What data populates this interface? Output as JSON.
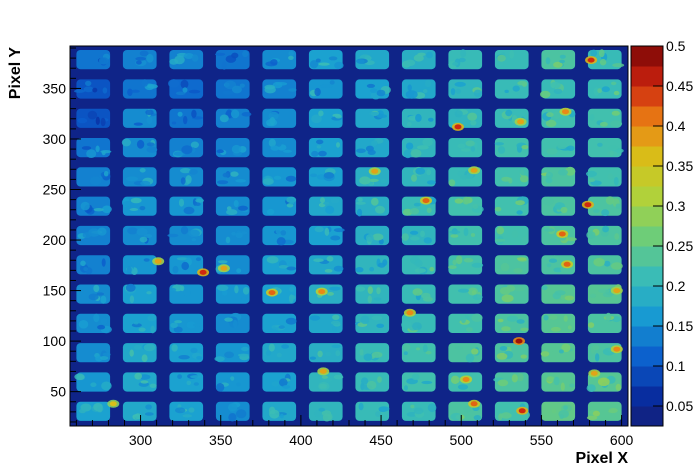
{
  "chart_data": {
    "type": "heatmap",
    "title": "",
    "xlabel": "Pixel X",
    "ylabel": "Pixel Y",
    "xlim": [
      256,
      604
    ],
    "ylim": [
      16,
      392
    ],
    "zlim": [
      0.025,
      0.5
    ],
    "x_ticks": [
      300,
      350,
      400,
      450,
      500,
      550,
      600
    ],
    "y_ticks": [
      50,
      100,
      150,
      200,
      250,
      300,
      350
    ],
    "z_ticks": [
      0.05,
      0.1,
      0.15,
      0.2,
      0.25,
      0.3,
      0.35,
      0.4,
      0.45,
      0.5
    ],
    "grid": false,
    "legend": "colorbar-right",
    "background_value": 0.04,
    "cells": {
      "columns": 12,
      "rows": 13,
      "x_start": 256,
      "x_pitch": 29,
      "y_start": 16,
      "y_pitch": 29,
      "pad_width": 21,
      "pad_height": 19
    },
    "pad_mean_values": [
      [
        0.17,
        0.18,
        0.17,
        0.15,
        0.18,
        0.2,
        0.21,
        0.21,
        0.23,
        0.22,
        0.25,
        0.24
      ],
      [
        0.16,
        0.18,
        0.17,
        0.16,
        0.17,
        0.2,
        0.21,
        0.22,
        0.22,
        0.23,
        0.24,
        0.24
      ],
      [
        0.15,
        0.18,
        0.17,
        0.16,
        0.18,
        0.19,
        0.21,
        0.22,
        0.23,
        0.23,
        0.24,
        0.23
      ],
      [
        0.15,
        0.17,
        0.16,
        0.15,
        0.17,
        0.18,
        0.2,
        0.21,
        0.22,
        0.23,
        0.24,
        0.23
      ],
      [
        0.15,
        0.17,
        0.16,
        0.16,
        0.17,
        0.19,
        0.2,
        0.21,
        0.22,
        0.23,
        0.24,
        0.24
      ],
      [
        0.14,
        0.16,
        0.16,
        0.15,
        0.17,
        0.18,
        0.2,
        0.21,
        0.22,
        0.23,
        0.23,
        0.23
      ],
      [
        0.14,
        0.15,
        0.15,
        0.15,
        0.16,
        0.17,
        0.19,
        0.2,
        0.22,
        0.22,
        0.23,
        0.23
      ],
      [
        0.14,
        0.16,
        0.16,
        0.15,
        0.16,
        0.18,
        0.19,
        0.21,
        0.22,
        0.22,
        0.23,
        0.23
      ],
      [
        0.14,
        0.15,
        0.15,
        0.15,
        0.16,
        0.17,
        0.19,
        0.2,
        0.21,
        0.22,
        0.23,
        0.22
      ],
      [
        0.13,
        0.15,
        0.14,
        0.14,
        0.15,
        0.17,
        0.18,
        0.2,
        0.21,
        0.22,
        0.22,
        0.22
      ],
      [
        0.1,
        0.15,
        0.13,
        0.14,
        0.15,
        0.17,
        0.18,
        0.2,
        0.2,
        0.21,
        0.22,
        0.22
      ],
      [
        0.1,
        0.13,
        0.12,
        0.13,
        0.14,
        0.16,
        0.17,
        0.18,
        0.2,
        0.21,
        0.21,
        0.21
      ],
      [
        0.13,
        0.14,
        0.14,
        0.13,
        0.15,
        0.17,
        0.18,
        0.19,
        0.21,
        0.21,
        0.23,
        0.21
      ]
    ],
    "hotspots": [
      {
        "x": 581,
        "y": 378,
        "value": 0.45
      },
      {
        "x": 565,
        "y": 327,
        "value": 0.4
      },
      {
        "x": 537,
        "y": 317,
        "value": 0.38
      },
      {
        "x": 498,
        "y": 312,
        "value": 0.45
      },
      {
        "x": 478,
        "y": 239,
        "value": 0.42
      },
      {
        "x": 579,
        "y": 235,
        "value": 0.45
      },
      {
        "x": 563,
        "y": 206,
        "value": 0.42
      },
      {
        "x": 566,
        "y": 176,
        "value": 0.42
      },
      {
        "x": 339,
        "y": 168,
        "value": 0.45
      },
      {
        "x": 311,
        "y": 179,
        "value": 0.38
      },
      {
        "x": 382,
        "y": 148,
        "value": 0.42
      },
      {
        "x": 413,
        "y": 149,
        "value": 0.4
      },
      {
        "x": 468,
        "y": 128,
        "value": 0.4
      },
      {
        "x": 536,
        "y": 100,
        "value": 0.48
      },
      {
        "x": 597,
        "y": 92,
        "value": 0.4
      },
      {
        "x": 508,
        "y": 38,
        "value": 0.42
      },
      {
        "x": 538,
        "y": 31,
        "value": 0.45
      },
      {
        "x": 503,
        "y": 62,
        "value": 0.4
      },
      {
        "x": 583,
        "y": 68,
        "value": 0.38
      },
      {
        "x": 414,
        "y": 70,
        "value": 0.38
      },
      {
        "x": 446,
        "y": 268,
        "value": 0.38
      },
      {
        "x": 508,
        "y": 269,
        "value": 0.38
      },
      {
        "x": 597,
        "y": 150,
        "value": 0.38
      },
      {
        "x": 283,
        "y": 38,
        "value": 0.36
      },
      {
        "x": 352,
        "y": 172,
        "value": 0.38
      }
    ]
  }
}
